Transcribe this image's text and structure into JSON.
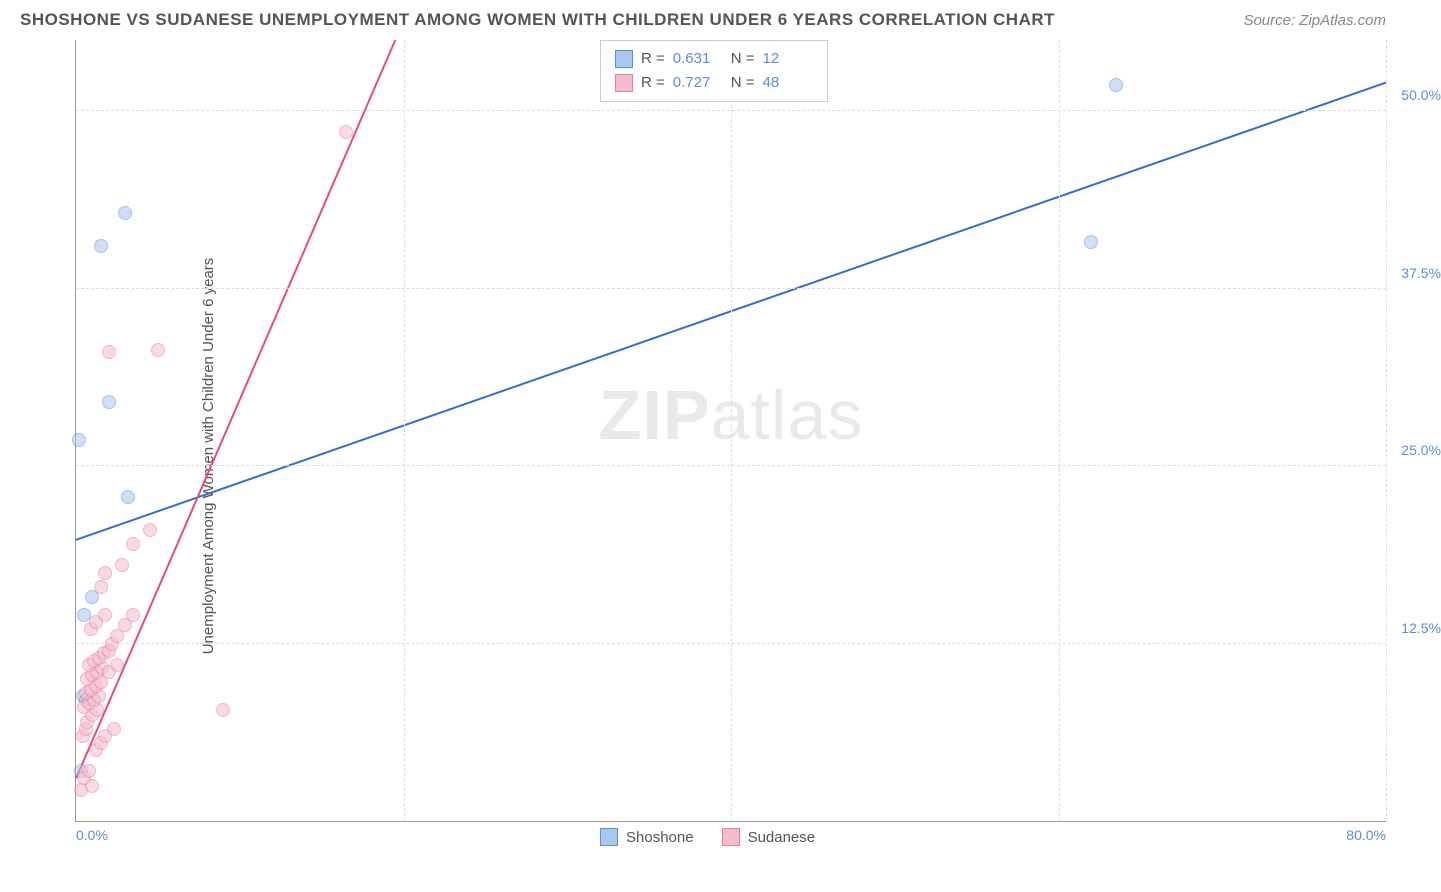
{
  "header": {
    "title": "SHOSHONE VS SUDANESE UNEMPLOYMENT AMONG WOMEN WITH CHILDREN UNDER 6 YEARS CORRELATION CHART",
    "source": "Source: ZipAtlas.com"
  },
  "watermark": {
    "zip": "ZIP",
    "atlas": "atlas"
  },
  "chart": {
    "type": "scatter",
    "ylabel": "Unemployment Among Women with Children Under 6 years",
    "xlim": [
      0,
      80
    ],
    "ylim": [
      0,
      55
    ],
    "xtick_labels": {
      "min": "0.0%",
      "max": "80.0%"
    },
    "ytick_labels": [
      "12.5%",
      "25.0%",
      "37.5%",
      "50.0%"
    ],
    "ytick_values": [
      12.5,
      25.0,
      37.5,
      50.0
    ],
    "x_gridlines": [
      20,
      40,
      60,
      80
    ],
    "grid_color": "#dddddd",
    "background_color": "#ffffff",
    "marker_radius": 7,
    "marker_opacity": 0.55,
    "line_width": 2,
    "series": [
      {
        "name": "Shoshone",
        "color_fill": "#a9c8ef",
        "color_stroke": "#5b8fd6",
        "line_color": "#2f6fd0",
        "R": "0.631",
        "N": "12",
        "points": [
          [
            0.3,
            3.5
          ],
          [
            0.4,
            8.8
          ],
          [
            0.5,
            14.5
          ],
          [
            1.0,
            15.8
          ],
          [
            0.2,
            26.8
          ],
          [
            2.0,
            29.5
          ],
          [
            3.2,
            22.8
          ],
          [
            1.5,
            40.5
          ],
          [
            3.0,
            42.8
          ],
          [
            62.0,
            40.8
          ],
          [
            63.5,
            51.8
          ],
          [
            0.6,
            8.5
          ]
        ],
        "trend": {
          "x1": 0,
          "y1": 19.8,
          "x2": 80,
          "y2": 52.0
        }
      },
      {
        "name": "Sudanese",
        "color_fill": "#f6bccc",
        "color_stroke": "#e87ba0",
        "line_color": "#e64b7a",
        "R": "0.727",
        "N": "48",
        "points": [
          [
            0.3,
            2.2
          ],
          [
            0.5,
            3.0
          ],
          [
            0.8,
            3.5
          ],
          [
            1.0,
            2.5
          ],
          [
            1.2,
            5.0
          ],
          [
            1.5,
            5.5
          ],
          [
            0.4,
            6.0
          ],
          [
            0.6,
            6.5
          ],
          [
            1.8,
            6.0
          ],
          [
            0.7,
            7.0
          ],
          [
            1.0,
            7.5
          ],
          [
            1.3,
            7.8
          ],
          [
            0.5,
            8.0
          ],
          [
            0.8,
            8.3
          ],
          [
            1.1,
            8.5
          ],
          [
            1.4,
            8.8
          ],
          [
            0.6,
            9.0
          ],
          [
            0.9,
            9.2
          ],
          [
            1.2,
            9.5
          ],
          [
            1.5,
            9.8
          ],
          [
            0.7,
            10.0
          ],
          [
            1.0,
            10.3
          ],
          [
            1.3,
            10.5
          ],
          [
            1.6,
            10.8
          ],
          [
            0.8,
            11.0
          ],
          [
            1.1,
            11.3
          ],
          [
            1.4,
            11.5
          ],
          [
            1.7,
            11.8
          ],
          [
            2.0,
            12.0
          ],
          [
            2.2,
            12.5
          ],
          [
            2.5,
            13.0
          ],
          [
            0.9,
            13.5
          ],
          [
            1.2,
            14.0
          ],
          [
            1.8,
            14.5
          ],
          [
            2.0,
            10.5
          ],
          [
            2.5,
            11.0
          ],
          [
            3.0,
            13.8
          ],
          [
            3.5,
            14.5
          ],
          [
            1.5,
            16.5
          ],
          [
            1.8,
            17.5
          ],
          [
            2.8,
            18.0
          ],
          [
            3.5,
            19.5
          ],
          [
            4.5,
            20.5
          ],
          [
            2.0,
            33.0
          ],
          [
            5.0,
            33.2
          ],
          [
            9.0,
            7.8
          ],
          [
            16.5,
            48.5
          ],
          [
            2.3,
            6.5
          ]
        ],
        "trend": {
          "x1": 0,
          "y1": 3.0,
          "x2": 19.5,
          "y2": 55.0
        }
      }
    ],
    "legend_top": {
      "r_label": "R =",
      "n_label": "N ="
    },
    "legend_bottom": [
      {
        "label": "Shoshone",
        "fill": "#a9c8ef",
        "stroke": "#5b8fd6"
      },
      {
        "label": "Sudanese",
        "fill": "#f6bccc",
        "stroke": "#e87ba0"
      }
    ]
  }
}
